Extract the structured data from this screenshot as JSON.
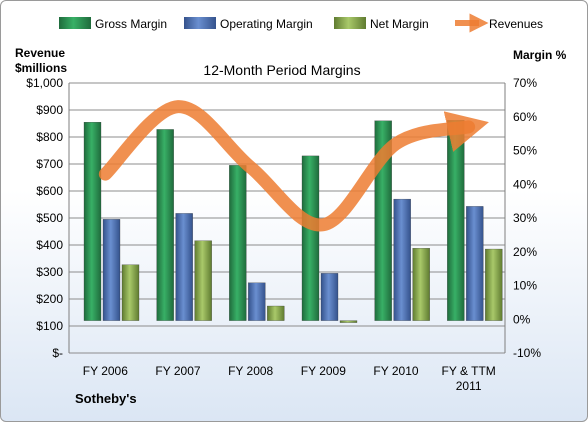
{
  "chart_data": {
    "type": "bar",
    "title": "12-Month Period Margins",
    "categories": [
      "FY 2006",
      "FY 2007",
      "FY 2008",
      "FY 2009",
      "FY 2010",
      "FY & TTM 2011"
    ],
    "series": [
      {
        "name": "Gross Margin",
        "axis": "left",
        "values": [
          855,
          828,
          695,
          730,
          860,
          862
        ],
        "color": "#2e9a58"
      },
      {
        "name": "Operating Margin",
        "axis": "left",
        "values": [
          495,
          517,
          260,
          295,
          570,
          543
        ],
        "color": "#4f73b8"
      },
      {
        "name": "Net Margin",
        "axis": "left",
        "values": [
          327,
          416,
          174,
          120,
          388,
          385
        ],
        "color": "#8fb354"
      },
      {
        "name": "Revenues",
        "type": "line",
        "axis": "right",
        "values": [
          0.43,
          0.63,
          0.45,
          0.28,
          0.52,
          0.57
        ],
        "color": "#ed7d31"
      }
    ],
    "y_left": {
      "label_line1": "Revenue",
      "label_line2": "$millions",
      "min": 0,
      "max": 1000,
      "step": 100,
      "tick_labels": [
        "$-",
        "$100",
        "$200",
        "$300",
        "$400",
        "$500",
        "$600",
        "$700",
        "$800",
        "$900",
        "$1,000"
      ]
    },
    "y_right": {
      "label": "Margin %",
      "min": -0.1,
      "max": 0.7,
      "step": 0.1,
      "tick_labels": [
        "-10%",
        "0%",
        "10%",
        "20%",
        "30%",
        "40%",
        "50%",
        "60%",
        "70%"
      ]
    },
    "x_tick_labels": [
      [
        "FY 2006"
      ],
      [
        "FY 2007"
      ],
      [
        "FY 2008"
      ],
      [
        "FY 2009"
      ],
      [
        "FY 2010"
      ],
      [
        "FY & TTM",
        "2011"
      ]
    ],
    "grid": true,
    "legend_position": "top",
    "bar_baseline": 120
  },
  "footer": {
    "company": "Sotheby's"
  }
}
